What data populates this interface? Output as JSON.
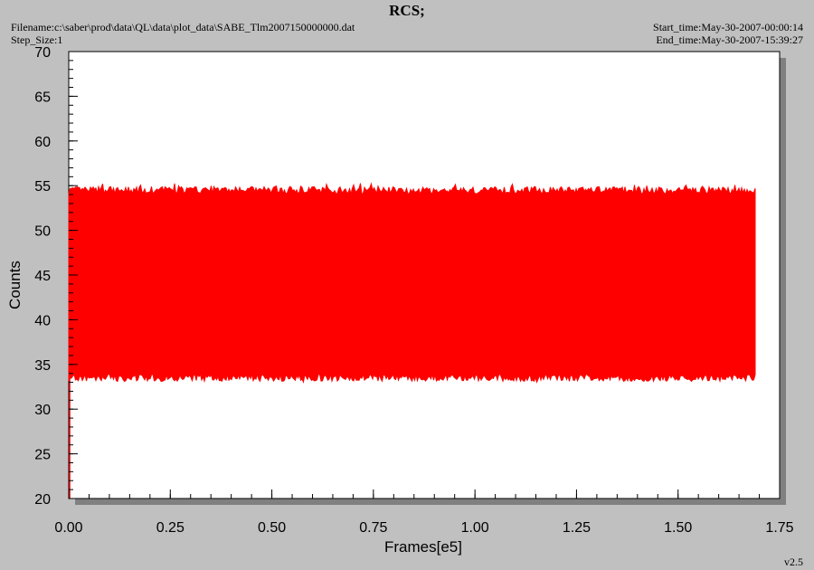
{
  "header": {
    "title": "RCS;",
    "filename": "Filename:c:\\saber\\prod\\data\\QL\\data\\plot_data\\SABE_Tlm2007150000000.dat",
    "step_size": "Step_Size:1",
    "start_time": "Start_time:May-30-2007-00:00:14",
    "end_time": "End_time:May-30-2007-15:39:27"
  },
  "footer": {
    "version": "v2.5"
  },
  "colors": {
    "series": "#ff0000",
    "plot_bg": "#ffffff",
    "page_bg": "#c0c0c0",
    "shadow": "#808080"
  },
  "chart_data": {
    "type": "line",
    "xlabel": "Frames[e5]",
    "ylabel": "Counts",
    "xlim": [
      0,
      1.75
    ],
    "ylim": [
      20,
      70
    ],
    "xticks": [
      "0.00",
      "0.25",
      "0.50",
      "0.75",
      "1.00",
      "1.25",
      "1.50",
      "1.75"
    ],
    "yticks": [
      "20",
      "25",
      "30",
      "35",
      "40",
      "45",
      "50",
      "55",
      "60",
      "65",
      "70"
    ],
    "grid": false,
    "legend": "none",
    "series": [
      {
        "x_range": [
          0,
          1.69
        ],
        "band_low": 33.5,
        "band_high": 54.5,
        "min_value": 33,
        "max_value": 55.3,
        "start_dip": 20
      }
    ]
  }
}
